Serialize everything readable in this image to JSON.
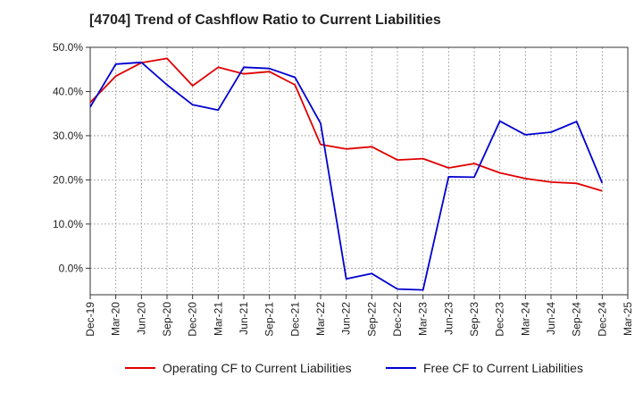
{
  "chart_data": {
    "type": "line",
    "title": "[4704]  Trend of Cashflow Ratio to Current Liabilities",
    "x": [
      "Dec-19",
      "Mar-20",
      "Jun-20",
      "Sep-20",
      "Dec-20",
      "Mar-21",
      "Jun-21",
      "Sep-21",
      "Dec-21",
      "Mar-22",
      "Jun-22",
      "Sep-22",
      "Dec-22",
      "Mar-23",
      "Jun-23",
      "Sep-23",
      "Dec-23",
      "Mar-24",
      "Jun-24",
      "Sep-24",
      "Dec-24",
      "Mar-25"
    ],
    "x_tick_labels": [
      "Dec-19",
      "Mar-20",
      "Jun-20",
      "Sep-20",
      "Dec-20",
      "Mar-21",
      "Jun-21",
      "Sep-21",
      "Dec-21",
      "Mar-22",
      "Jun-22",
      "Sep-22",
      "Dec-22",
      "Mar-23",
      "Jun-23",
      "Sep-23",
      "Dec-23",
      "Mar-24",
      "Jun-24",
      "Sep-24",
      "Dec-24",
      "Mar-25"
    ],
    "y_tick_labels": [
      "0.0%",
      "10.0%",
      "20.0%",
      "30.0%",
      "40.0%",
      "50.0%"
    ],
    "y_ticks": [
      0,
      10,
      20,
      30,
      40,
      50
    ],
    "ylim": [
      -6,
      50
    ],
    "grid": true,
    "legend_position": "bottom",
    "series": [
      {
        "name": "Operating CF to Current Liabilities",
        "color": "#e00000",
        "values": [
          37.5,
          43.5,
          46.5,
          47.5,
          41.3,
          45.5,
          44.0,
          44.5,
          41.5,
          28.0,
          27.0,
          27.5,
          24.5,
          24.8,
          22.7,
          23.7,
          21.6,
          20.3,
          19.5,
          19.2,
          17.5,
          null
        ]
      },
      {
        "name": "Free CF to Current Liabilities",
        "color": "#0000d0",
        "values": [
          36.5,
          46.2,
          46.6,
          41.5,
          37.0,
          35.8,
          45.5,
          45.2,
          43.2,
          32.8,
          -2.4,
          -1.2,
          -4.7,
          -4.9,
          20.7,
          20.6,
          33.3,
          30.2,
          30.8,
          33.2,
          19.3,
          null
        ]
      }
    ]
  }
}
